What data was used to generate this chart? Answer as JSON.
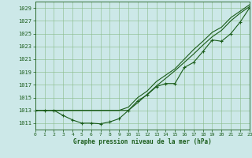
{
  "background_color": "#cce8e8",
  "grid_color": "#88bb88",
  "line_color": "#1a5c1a",
  "marker_color": "#1a5c1a",
  "xlabel": "Graphe pression niveau de la mer (hPa)",
  "xlabel_color": "#1a5c1a",
  "ylim": [
    1010,
    1030
  ],
  "xlim": [
    0,
    23
  ],
  "yticks": [
    1011,
    1013,
    1015,
    1017,
    1019,
    1021,
    1023,
    1025,
    1027,
    1029
  ],
  "xticks": [
    0,
    1,
    2,
    3,
    4,
    5,
    6,
    7,
    8,
    9,
    10,
    11,
    12,
    13,
    14,
    15,
    16,
    17,
    18,
    19,
    20,
    21,
    22,
    23
  ],
  "series1_x": [
    0,
    1,
    2,
    3,
    4,
    5,
    6,
    7,
    8,
    9,
    10,
    11,
    12,
    13,
    14,
    15,
    16,
    17,
    18,
    19,
    20,
    21,
    22,
    23
  ],
  "series1_y": [
    1013.0,
    1013.0,
    1013.0,
    1012.2,
    1011.5,
    1011.0,
    1011.0,
    1010.9,
    1011.2,
    1011.7,
    1013.0,
    1014.5,
    1015.4,
    1016.7,
    1017.2,
    1017.2,
    1019.7,
    1020.5,
    1022.2,
    1024.0,
    1023.8,
    1025.0,
    1026.8,
    1029.0
  ],
  "series2_x": [
    0,
    1,
    2,
    3,
    9,
    10,
    11,
    12,
    13,
    14,
    15,
    16,
    17,
    18,
    19,
    20,
    21,
    22,
    23
  ],
  "series2_y": [
    1013.0,
    1013.0,
    1013.0,
    1013.0,
    1013.0,
    1013.0,
    1014.2,
    1015.5,
    1016.8,
    1018.0,
    1019.2,
    1020.5,
    1021.8,
    1023.2,
    1024.5,
    1025.5,
    1027.0,
    1028.2,
    1029.2
  ],
  "series3_x": [
    0,
    1,
    2,
    3,
    9,
    10,
    11,
    12,
    13,
    14,
    15,
    16,
    17,
    18,
    19,
    20,
    21,
    22,
    23
  ],
  "series3_y": [
    1013.0,
    1013.0,
    1013.0,
    1013.0,
    1013.0,
    1013.5,
    1015.0,
    1016.0,
    1017.5,
    1018.5,
    1019.5,
    1021.0,
    1022.5,
    1023.8,
    1025.2,
    1026.0,
    1027.5,
    1028.5,
    1029.5
  ]
}
